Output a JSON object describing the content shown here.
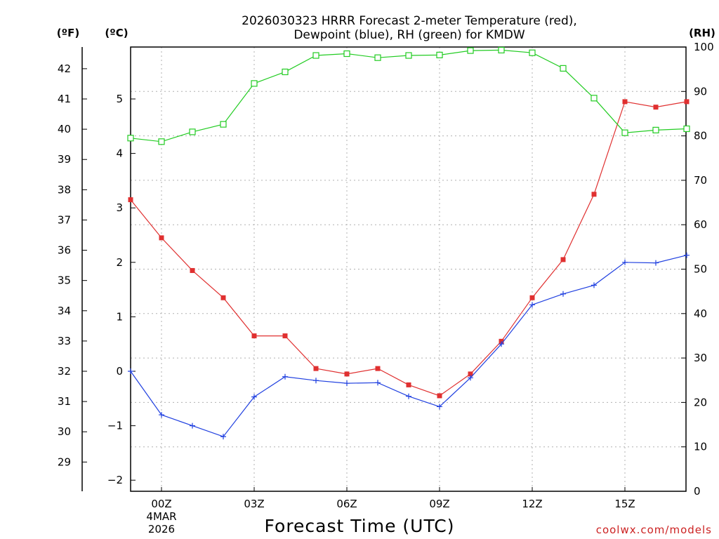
{
  "chart_data": {
    "type": "line",
    "title_line1": "2026030323 HRRR Forecast 2-meter Temperature (red),",
    "title_line2": "Dewpoint (blue), RH (green) for KMDW",
    "xlabel": "Forecast Time (UTC)",
    "units": {
      "fahrenheit": "(ºF)",
      "celsius": "(ºC)",
      "rh": "(RH)"
    },
    "x_hours": [
      23,
      0,
      1,
      2,
      3,
      4,
      5,
      6,
      7,
      8,
      9,
      10,
      11,
      12,
      13,
      14,
      15,
      16,
      17
    ],
    "x_tick_labels": [
      "00Z",
      "03Z",
      "06Z",
      "09Z",
      "12Z",
      "15Z"
    ],
    "x_date_label": [
      "4MAR",
      "2026"
    ],
    "celsius_ticks": [
      "5",
      "4",
      "3",
      "2",
      "1",
      "0",
      "−1",
      "−2"
    ],
    "fahrenheit_ticks": [
      "42",
      "41",
      "40",
      "39",
      "38",
      "37",
      "36",
      "35",
      "34",
      "33",
      "32",
      "31",
      "30",
      "29"
    ],
    "rh_ticks": [
      "100",
      "90",
      "80",
      "70",
      "60",
      "50",
      "40",
      "30",
      "20",
      "10",
      "0"
    ],
    "celsius_range": [
      -2.2,
      5.9
    ],
    "rh_range": [
      0,
      100
    ],
    "series": [
      {
        "name": "Temperature",
        "unit": "C",
        "color": "#e03030",
        "marker": "filled-square",
        "values": [
          3.15,
          2.45,
          1.85,
          1.35,
          0.65,
          0.65,
          0.05,
          -0.05,
          0.05,
          -0.25,
          -0.45,
          -0.05,
          0.55,
          1.35,
          2.05,
          3.25,
          4.95,
          4.85,
          4.95
        ]
      },
      {
        "name": "Dewpoint",
        "unit": "C",
        "color": "#2040e0",
        "marker": "plus",
        "values": [
          0.0,
          -0.8,
          -1.0,
          -1.2,
          -0.47,
          -0.1,
          -0.17,
          -0.22,
          -0.21,
          -0.46,
          -0.65,
          -0.12,
          0.5,
          1.22,
          1.42,
          1.58,
          2.0,
          1.99,
          2.13
        ]
      },
      {
        "name": "RH",
        "unit": "%",
        "color": "#22cc22",
        "marker": "open-square",
        "values": [
          79.5,
          78.7,
          80.9,
          82.6,
          91.8,
          94.4,
          98.1,
          98.5,
          97.6,
          98.1,
          98.2,
          99.2,
          99.3,
          98.7,
          95.2,
          88.5,
          80.7,
          81.3,
          81.6
        ]
      }
    ]
  },
  "credit": "coolwx.com/models"
}
